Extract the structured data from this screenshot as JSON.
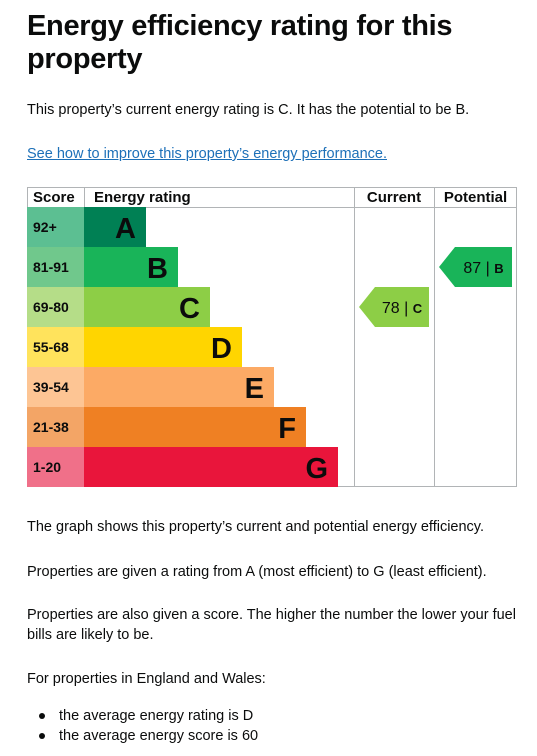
{
  "page": {
    "title": "Energy efficiency rating for this property",
    "intro": "This property’s current energy rating is C. It has the potential to be B.",
    "link_text": "See how to improve this property’s energy performance.",
    "para1": "The graph shows this property’s current and potential energy efficiency.",
    "para2": "Properties are given a rating from A (most efficient) to G (least efficient).",
    "para3": "Properties are also given a score. The higher the number the lower your fuel bills are likely to be.",
    "para4": "For properties in England and Wales:",
    "bullets": [
      "the average energy rating is D",
      "the average energy score is 60"
    ]
  },
  "chart_data": {
    "type": "bar",
    "columns": [
      "Score",
      "Energy rating",
      "Current",
      "Potential"
    ],
    "bands": [
      {
        "letter": "A",
        "score_range": "92+",
        "color": "#008054",
        "score_color": "#5cbf92"
      },
      {
        "letter": "B",
        "score_range": "81-91",
        "color": "#19b459",
        "score_color": "#70c88c"
      },
      {
        "letter": "C",
        "score_range": "69-80",
        "color": "#8dce46",
        "score_color": "#b5dd88"
      },
      {
        "letter": "D",
        "score_range": "55-68",
        "color": "#ffd500",
        "score_color": "#ffe35c"
      },
      {
        "letter": "E",
        "score_range": "39-54",
        "color": "#fcaa65",
        "score_color": "#fdc594"
      },
      {
        "letter": "F",
        "score_range": "21-38",
        "color": "#ef8023",
        "score_color": "#f3a566"
      },
      {
        "letter": "G",
        "score_range": "1-20",
        "color": "#e9153b",
        "score_color": "#f07089"
      }
    ],
    "current": {
      "score": 78,
      "band": "C",
      "label": "78 | C",
      "color": "#8dce46"
    },
    "potential": {
      "score": 87,
      "band": "B",
      "label": "87 | B",
      "color": "#19b459"
    }
  }
}
